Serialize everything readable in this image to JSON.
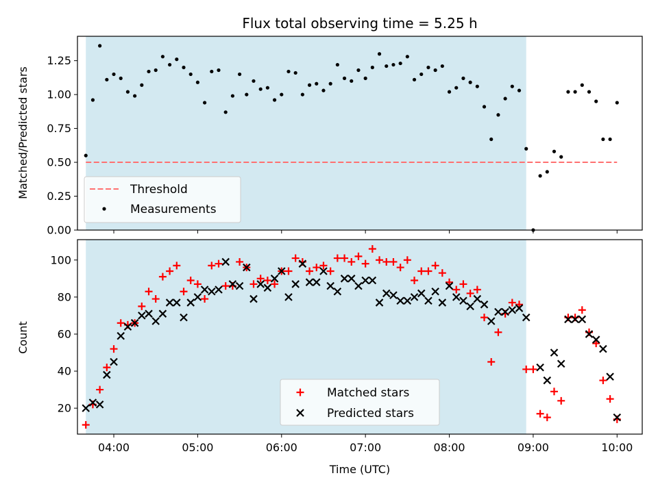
{
  "chart_data": [
    {
      "type": "scatter",
      "title": "Flux total observing time = 5.25 h",
      "ylabel": "Matched/Predicted stars",
      "xlabel": "",
      "xlim": [
        "03:34",
        "10:18"
      ],
      "ylim": [
        0,
        1.43
      ],
      "yticks": [
        0.0,
        0.25,
        0.5,
        0.75,
        1.0,
        1.25
      ],
      "ytick_labels": [
        "0.00",
        "0.25",
        "0.50",
        "0.75",
        "1.00",
        "1.25"
      ],
      "xticks": [
        "04:00",
        "05:00",
        "06:00",
        "07:00",
        "08:00",
        "09:00",
        "10:00"
      ],
      "shaded_span": [
        "03:40",
        "08:55"
      ],
      "threshold": {
        "name": "Threshold",
        "y": 0.5,
        "x_range": [
          "03:40",
          "10:00"
        ],
        "color": "#ff7070",
        "style": "dashed"
      },
      "legend": {
        "placement": "lower-left",
        "entries": [
          "Threshold",
          "Measurements"
        ]
      },
      "series": [
        {
          "name": "Measurements",
          "marker": "dot",
          "color": "#000000",
          "points": [
            [
              "03:40",
              0.55
            ],
            [
              "03:45",
              0.96
            ],
            [
              "03:50",
              1.36
            ],
            [
              "03:55",
              1.11
            ],
            [
              "04:00",
              1.15
            ],
            [
              "04:05",
              1.12
            ],
            [
              "04:10",
              1.02
            ],
            [
              "04:15",
              0.99
            ],
            [
              "04:20",
              1.07
            ],
            [
              "04:25",
              1.17
            ],
            [
              "04:30",
              1.18
            ],
            [
              "04:35",
              1.28
            ],
            [
              "04:40",
              1.22
            ],
            [
              "04:45",
              1.26
            ],
            [
              "04:50",
              1.2
            ],
            [
              "04:55",
              1.15
            ],
            [
              "05:00",
              1.09
            ],
            [
              "05:05",
              0.94
            ],
            [
              "05:10",
              1.17
            ],
            [
              "05:15",
              1.18
            ],
            [
              "05:20",
              0.87
            ],
            [
              "05:25",
              0.99
            ],
            [
              "05:30",
              1.15
            ],
            [
              "05:35",
              1.0
            ],
            [
              "05:40",
              1.1
            ],
            [
              "05:45",
              1.04
            ],
            [
              "05:50",
              1.05
            ],
            [
              "05:55",
              0.96
            ],
            [
              "06:00",
              1.0
            ],
            [
              "06:05",
              1.17
            ],
            [
              "06:10",
              1.16
            ],
            [
              "06:15",
              1.0
            ],
            [
              "06:20",
              1.07
            ],
            [
              "06:25",
              1.08
            ],
            [
              "06:30",
              1.03
            ],
            [
              "06:35",
              1.08
            ],
            [
              "06:40",
              1.22
            ],
            [
              "06:45",
              1.12
            ],
            [
              "06:50",
              1.1
            ],
            [
              "06:55",
              1.18
            ],
            [
              "07:00",
              1.12
            ],
            [
              "07:05",
              1.2
            ],
            [
              "07:10",
              1.3
            ],
            [
              "07:15",
              1.21
            ],
            [
              "07:20",
              1.22
            ],
            [
              "07:25",
              1.23
            ],
            [
              "07:30",
              1.28
            ],
            [
              "07:35",
              1.11
            ],
            [
              "07:40",
              1.15
            ],
            [
              "07:45",
              1.2
            ],
            [
              "07:50",
              1.18
            ],
            [
              "07:55",
              1.21
            ],
            [
              "08:00",
              1.02
            ],
            [
              "08:05",
              1.05
            ],
            [
              "08:10",
              1.12
            ],
            [
              "08:15",
              1.09
            ],
            [
              "08:20",
              1.06
            ],
            [
              "08:25",
              0.91
            ],
            [
              "08:30",
              0.67
            ],
            [
              "08:35",
              0.85
            ],
            [
              "08:40",
              0.97
            ],
            [
              "08:45",
              1.06
            ],
            [
              "08:50",
              1.03
            ],
            [
              "08:55",
              0.6
            ],
            [
              "09:00",
              0.0
            ],
            [
              "09:05",
              0.4
            ],
            [
              "09:10",
              0.43
            ],
            [
              "09:15",
              0.58
            ],
            [
              "09:20",
              0.54
            ],
            [
              "09:25",
              1.02
            ],
            [
              "09:30",
              1.02
            ],
            [
              "09:35",
              1.07
            ],
            [
              "09:40",
              1.02
            ],
            [
              "09:45",
              0.95
            ],
            [
              "09:50",
              0.67
            ],
            [
              "09:55",
              0.67
            ],
            [
              "10:00",
              0.94
            ]
          ]
        }
      ]
    },
    {
      "type": "scatter",
      "title": "",
      "ylabel": "Count",
      "xlabel": "Time (UTC)",
      "xlim": [
        "03:34",
        "10:18"
      ],
      "ylim": [
        6,
        111
      ],
      "yticks": [
        20,
        40,
        60,
        80,
        100
      ],
      "ytick_labels": [
        "20",
        "40",
        "60",
        "80",
        "100"
      ],
      "xticks": [
        "04:00",
        "05:00",
        "06:00",
        "07:00",
        "08:00",
        "09:00",
        "10:00"
      ],
      "shaded_span": [
        "03:40",
        "08:55"
      ],
      "legend": {
        "placement": "lower-center",
        "entries": [
          "Matched stars",
          "Predicted stars"
        ]
      },
      "series": [
        {
          "name": "Matched stars",
          "marker": "plus",
          "color": "#ff0000",
          "points": [
            [
              "03:40",
              11
            ],
            [
              "03:45",
              22
            ],
            [
              "03:50",
              30
            ],
            [
              "03:55",
              42
            ],
            [
              "04:00",
              52
            ],
            [
              "04:05",
              66
            ],
            [
              "04:10",
              65
            ],
            [
              "04:15",
              66
            ],
            [
              "04:20",
              75
            ],
            [
              "04:25",
              83
            ],
            [
              "04:30",
              79
            ],
            [
              "04:35",
              91
            ],
            [
              "04:40",
              94
            ],
            [
              "04:45",
              97
            ],
            [
              "04:50",
              83
            ],
            [
              "04:55",
              89
            ],
            [
              "05:00",
              87
            ],
            [
              "05:05",
              79
            ],
            [
              "05:10",
              97
            ],
            [
              "05:15",
              98
            ],
            [
              "05:20",
              86
            ],
            [
              "05:25",
              86
            ],
            [
              "05:30",
              99
            ],
            [
              "05:35",
              96
            ],
            [
              "05:40",
              87
            ],
            [
              "05:45",
              90
            ],
            [
              "05:50",
              89
            ],
            [
              "05:55",
              87
            ],
            [
              "06:00",
              94
            ],
            [
              "06:05",
              94
            ],
            [
              "06:10",
              101
            ],
            [
              "06:15",
              99
            ],
            [
              "06:20",
              94
            ],
            [
              "06:25",
              96
            ],
            [
              "06:30",
              97
            ],
            [
              "06:35",
              94
            ],
            [
              "06:40",
              101
            ],
            [
              "06:45",
              101
            ],
            [
              "06:50",
              99
            ],
            [
              "06:55",
              102
            ],
            [
              "07:00",
              98
            ],
            [
              "07:05",
              106
            ],
            [
              "07:10",
              100
            ],
            [
              "07:15",
              99
            ],
            [
              "07:20",
              99
            ],
            [
              "07:25",
              96
            ],
            [
              "07:30",
              100
            ],
            [
              "07:35",
              89
            ],
            [
              "07:40",
              94
            ],
            [
              "07:45",
              94
            ],
            [
              "07:50",
              97
            ],
            [
              "07:55",
              93
            ],
            [
              "08:00",
              88
            ],
            [
              "08:05",
              84
            ],
            [
              "08:10",
              87
            ],
            [
              "08:15",
              82
            ],
            [
              "08:20",
              84
            ],
            [
              "08:25",
              69
            ],
            [
              "08:30",
              45
            ],
            [
              "08:35",
              61
            ],
            [
              "08:40",
              71
            ],
            [
              "08:45",
              77
            ],
            [
              "08:50",
              76
            ],
            [
              "08:55",
              41
            ],
            [
              "09:00",
              41
            ],
            [
              "09:05",
              17
            ],
            [
              "09:10",
              15
            ],
            [
              "09:15",
              29
            ],
            [
              "09:20",
              24
            ],
            [
              "09:25",
              69
            ],
            [
              "09:30",
              69
            ],
            [
              "09:35",
              73
            ],
            [
              "09:40",
              61
            ],
            [
              "09:45",
              55
            ],
            [
              "09:50",
              35
            ],
            [
              "09:55",
              25
            ],
            [
              "10:00",
              14
            ]
          ]
        },
        {
          "name": "Predicted stars",
          "marker": "x",
          "color": "#000000",
          "points": [
            [
              "03:40",
              20
            ],
            [
              "03:45",
              23
            ],
            [
              "03:50",
              22
            ],
            [
              "03:55",
              38
            ],
            [
              "04:00",
              45
            ],
            [
              "04:05",
              59
            ],
            [
              "04:10",
              64
            ],
            [
              "04:15",
              66
            ],
            [
              "04:20",
              70
            ],
            [
              "04:25",
              71
            ],
            [
              "04:30",
              67
            ],
            [
              "04:35",
              71
            ],
            [
              "04:40",
              77
            ],
            [
              "04:45",
              77
            ],
            [
              "04:50",
              69
            ],
            [
              "04:55",
              77
            ],
            [
              "05:00",
              80
            ],
            [
              "05:05",
              84
            ],
            [
              "05:10",
              83
            ],
            [
              "05:15",
              84
            ],
            [
              "05:20",
              99
            ],
            [
              "05:25",
              87
            ],
            [
              "05:30",
              86
            ],
            [
              "05:35",
              96
            ],
            [
              "05:40",
              79
            ],
            [
              "05:45",
              87
            ],
            [
              "05:50",
              85
            ],
            [
              "05:55",
              90
            ],
            [
              "06:00",
              94
            ],
            [
              "06:05",
              80
            ],
            [
              "06:10",
              87
            ],
            [
              "06:15",
              98
            ],
            [
              "06:20",
              88
            ],
            [
              "06:25",
              88
            ],
            [
              "06:30",
              94
            ],
            [
              "06:35",
              86
            ],
            [
              "06:40",
              83
            ],
            [
              "06:45",
              90
            ],
            [
              "06:50",
              90
            ],
            [
              "06:55",
              86
            ],
            [
              "07:00",
              89
            ],
            [
              "07:05",
              89
            ],
            [
              "07:10",
              77
            ],
            [
              "07:15",
              82
            ],
            [
              "07:20",
              81
            ],
            [
              "07:25",
              78
            ],
            [
              "07:30",
              78
            ],
            [
              "07:35",
              80
            ],
            [
              "07:40",
              82
            ],
            [
              "07:45",
              78
            ],
            [
              "07:50",
              83
            ],
            [
              "07:55",
              77
            ],
            [
              "08:00",
              86
            ],
            [
              "08:05",
              80
            ],
            [
              "08:10",
              78
            ],
            [
              "08:15",
              75
            ],
            [
              "08:20",
              79
            ],
            [
              "08:25",
              76
            ],
            [
              "08:30",
              67
            ],
            [
              "08:35",
              72
            ],
            [
              "08:40",
              72
            ],
            [
              "08:45",
              73
            ],
            [
              "08:50",
              74
            ],
            [
              "08:55",
              69
            ],
            [
              "09:05",
              42
            ],
            [
              "09:10",
              35
            ],
            [
              "09:15",
              50
            ],
            [
              "09:20",
              44
            ],
            [
              "09:25",
              68
            ],
            [
              "09:30",
              68
            ],
            [
              "09:35",
              68
            ],
            [
              "09:40",
              60
            ],
            [
              "09:45",
              57
            ],
            [
              "09:50",
              52
            ],
            [
              "09:55",
              37
            ],
            [
              "10:00",
              15
            ]
          ]
        }
      ]
    }
  ],
  "colors": {
    "shade": "#d3e9f1",
    "matched": "#ff0000",
    "predicted": "#000000",
    "threshold": "#ff7070"
  }
}
